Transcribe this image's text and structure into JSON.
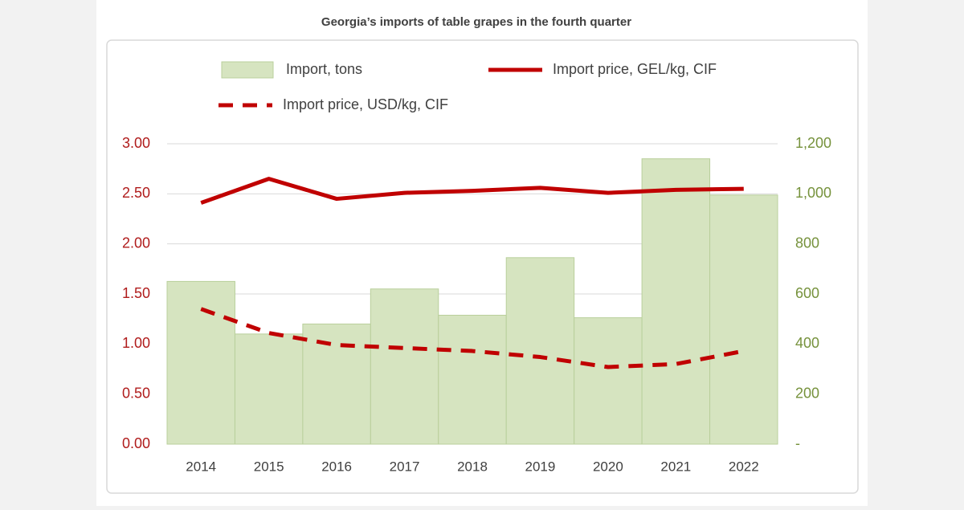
{
  "chart_data": {
    "type": "combo",
    "title": "Georgia’s imports of table grapes in the fourth quarter",
    "categories": [
      "2014",
      "2015",
      "2016",
      "2017",
      "2018",
      "2019",
      "2020",
      "2021",
      "2022"
    ],
    "series": [
      {
        "name": "Import, tons",
        "type": "bar",
        "axis": "y2",
        "color": "#d6e4c0",
        "values": [
          650,
          440,
          480,
          620,
          515,
          745,
          505,
          1140,
          995
        ]
      },
      {
        "name": "Import price, GEL/kg, CIF",
        "type": "line",
        "line_style": "solid",
        "color": "#c00000",
        "values": [
          2.41,
          2.65,
          2.45,
          2.51,
          2.53,
          2.56,
          2.51,
          2.54,
          2.55
        ]
      },
      {
        "name": "Import price, USD/kg, CIF",
        "type": "line",
        "line_style": "dashed",
        "color": "#c00000",
        "values": [
          1.35,
          1.11,
          0.99,
          0.96,
          0.93,
          0.87,
          0.77,
          0.8,
          0.93
        ]
      }
    ],
    "ylim": [
      0,
      3
    ],
    "yticks": [
      {
        "value": 0,
        "label": "0.00"
      },
      {
        "value": 0.5,
        "label": "0.50"
      },
      {
        "value": 1,
        "label": "1.00"
      },
      {
        "value": 1.5,
        "label": "1.50"
      },
      {
        "value": 2,
        "label": "2.00"
      },
      {
        "value": 2.5,
        "label": "2.50"
      },
      {
        "value": 3,
        "label": "3.00"
      }
    ],
    "y2lim": [
      0,
      1200
    ],
    "y2ticks": [
      {
        "value": 0,
        "label": "-"
      },
      200,
      400,
      600,
      800,
      {
        "value": 1000,
        "label": "1,000"
      },
      {
        "value": 1200,
        "label": "1,200"
      }
    ],
    "grid": true,
    "y_label_color": "#b01c1c",
    "y2_label_color": "#76923c"
  }
}
